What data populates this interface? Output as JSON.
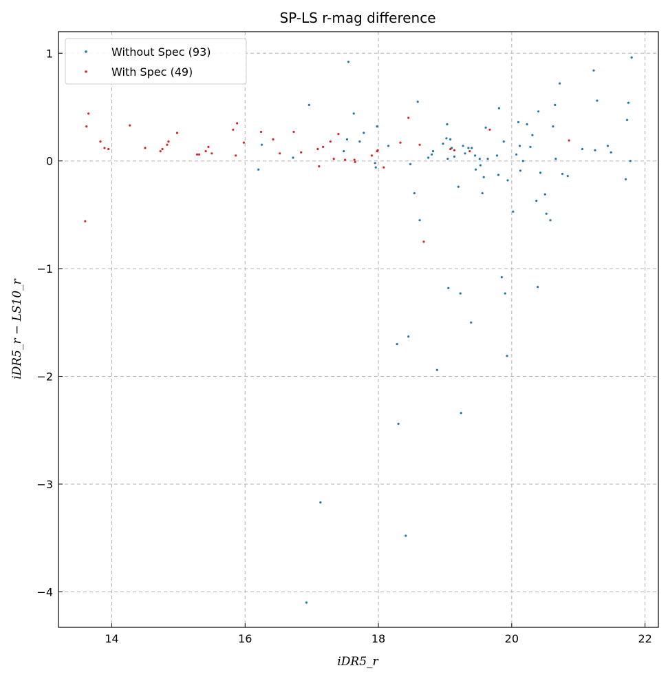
{
  "chart_data": {
    "type": "scatter",
    "title": "SP-LS r-mag difference",
    "xlabel": "iDR5_r",
    "ylabel": "iDR5_r − LS10_r",
    "xlim": [
      13.2,
      22.2
    ],
    "ylim": [
      -4.33,
      1.2
    ],
    "xticks": [
      14,
      16,
      18,
      20,
      22
    ],
    "yticks": [
      1,
      0,
      -1,
      -2,
      -3,
      -4
    ],
    "ytick_labels": [
      "1",
      "0",
      "−1",
      "−2",
      "−3",
      "−4"
    ],
    "grid": true,
    "legend_position": "top-left",
    "series": [
      {
        "name": "Without Spec (93)",
        "color": "#1f77b4",
        "points": [
          [
            16.2,
            -0.08
          ],
          [
            16.25,
            0.15
          ],
          [
            16.72,
            0.03
          ],
          [
            16.92,
            -4.1
          ],
          [
            16.96,
            0.52
          ],
          [
            17.13,
            -3.17
          ],
          [
            17.48,
            0.09
          ],
          [
            17.55,
            0.92
          ],
          [
            17.53,
            0.2
          ],
          [
            17.63,
            0.44
          ],
          [
            17.72,
            0.18
          ],
          [
            17.78,
            0.26
          ],
          [
            17.95,
            -0.02
          ],
          [
            17.96,
            -0.06
          ],
          [
            17.98,
            0.32
          ],
          [
            18.15,
            0.14
          ],
          [
            18.28,
            -1.7
          ],
          [
            18.3,
            -2.44
          ],
          [
            18.41,
            -3.48
          ],
          [
            18.45,
            -1.63
          ],
          [
            18.48,
            -0.03
          ],
          [
            18.54,
            -0.3
          ],
          [
            18.59,
            0.55
          ],
          [
            18.62,
            -0.55
          ],
          [
            18.75,
            0.03
          ],
          [
            18.8,
            0.06
          ],
          [
            18.82,
            0.09
          ],
          [
            18.88,
            -1.94
          ],
          [
            18.97,
            0.16
          ],
          [
            19.02,
            0.21
          ],
          [
            19.03,
            0.34
          ],
          [
            19.04,
            0.02
          ],
          [
            19.05,
            -1.18
          ],
          [
            19.08,
            0.2
          ],
          [
            19.1,
            0.12
          ],
          [
            19.14,
            0.04
          ],
          [
            19.2,
            -0.24
          ],
          [
            19.23,
            -1.23
          ],
          [
            19.24,
            -2.34
          ],
          [
            19.27,
            0.14
          ],
          [
            19.3,
            0.07
          ],
          [
            19.35,
            0.12
          ],
          [
            19.39,
            -1.5
          ],
          [
            19.4,
            0.12
          ],
          [
            19.46,
            -0.08
          ],
          [
            19.52,
            0.02
          ],
          [
            19.53,
            -0.04
          ],
          [
            19.56,
            -0.3
          ],
          [
            19.58,
            -0.15
          ],
          [
            19.61,
            0.31
          ],
          [
            19.64,
            0.02
          ],
          [
            19.78,
            0.05
          ],
          [
            19.8,
            -0.13
          ],
          [
            19.81,
            0.49
          ],
          [
            19.85,
            -1.08
          ],
          [
            19.88,
            0.18
          ],
          [
            19.9,
            -1.23
          ],
          [
            19.93,
            -1.81
          ],
          [
            19.94,
            -0.18
          ],
          [
            20.02,
            -0.47
          ],
          [
            20.07,
            0.06
          ],
          [
            20.1,
            0.36
          ],
          [
            20.12,
            0.14
          ],
          [
            20.13,
            -0.09
          ],
          [
            20.17,
            0.0
          ],
          [
            20.23,
            0.34
          ],
          [
            20.31,
            0.24
          ],
          [
            20.37,
            -0.37
          ],
          [
            20.39,
            -1.17
          ],
          [
            20.4,
            0.46
          ],
          [
            20.43,
            -0.11
          ],
          [
            20.5,
            -0.31
          ],
          [
            20.52,
            -0.49
          ],
          [
            20.58,
            -0.55
          ],
          [
            20.62,
            0.32
          ],
          [
            20.65,
            0.52
          ],
          [
            20.66,
            0.02
          ],
          [
            20.72,
            0.72
          ],
          [
            20.76,
            -0.12
          ],
          [
            20.84,
            -0.14
          ],
          [
            21.06,
            0.11
          ],
          [
            21.23,
            0.84
          ],
          [
            21.25,
            0.1
          ],
          [
            21.28,
            0.56
          ],
          [
            21.44,
            0.14
          ],
          [
            21.49,
            0.08
          ],
          [
            21.71,
            -0.17
          ],
          [
            21.73,
            0.38
          ],
          [
            21.75,
            0.54
          ],
          [
            21.78,
            0.0
          ],
          [
            21.8,
            0.96
          ],
          [
            20.28,
            0.13
          ],
          [
            19.45,
            0.05
          ]
        ]
      },
      {
        "name": "With Spec (49)",
        "color": "#d62728",
        "points": [
          [
            13.6,
            -0.56
          ],
          [
            13.62,
            0.32
          ],
          [
            13.65,
            0.44
          ],
          [
            13.83,
            0.18
          ],
          [
            13.89,
            0.12
          ],
          [
            13.95,
            0.11
          ],
          [
            14.27,
            0.33
          ],
          [
            14.5,
            0.12
          ],
          [
            14.73,
            0.09
          ],
          [
            14.76,
            0.11
          ],
          [
            14.83,
            0.15
          ],
          [
            14.85,
            0.18
          ],
          [
            14.98,
            0.26
          ],
          [
            15.28,
            0.06
          ],
          [
            15.31,
            0.06
          ],
          [
            15.41,
            0.09
          ],
          [
            15.45,
            0.13
          ],
          [
            15.5,
            0.07
          ],
          [
            15.82,
            0.29
          ],
          [
            15.86,
            0.05
          ],
          [
            15.88,
            0.35
          ],
          [
            15.98,
            0.17
          ],
          [
            16.24,
            0.27
          ],
          [
            16.42,
            0.2
          ],
          [
            16.52,
            0.07
          ],
          [
            16.73,
            0.27
          ],
          [
            16.84,
            0.08
          ],
          [
            17.09,
            0.11
          ],
          [
            17.11,
            -0.05
          ],
          [
            17.17,
            0.13
          ],
          [
            17.28,
            0.18
          ],
          [
            17.33,
            0.02
          ],
          [
            17.4,
            0.25
          ],
          [
            17.5,
            0.01
          ],
          [
            17.64,
            0.01
          ],
          [
            17.65,
            -0.01
          ],
          [
            17.9,
            0.05
          ],
          [
            17.98,
            0.09
          ],
          [
            17.99,
            0.1
          ],
          [
            18.08,
            -0.06
          ],
          [
            18.33,
            0.17
          ],
          [
            18.45,
            0.4
          ],
          [
            18.62,
            0.15
          ],
          [
            18.68,
            -0.75
          ],
          [
            19.08,
            0.11
          ],
          [
            19.14,
            0.1
          ],
          [
            19.37,
            0.09
          ],
          [
            19.67,
            0.29
          ],
          [
            20.86,
            0.19
          ]
        ]
      }
    ]
  }
}
